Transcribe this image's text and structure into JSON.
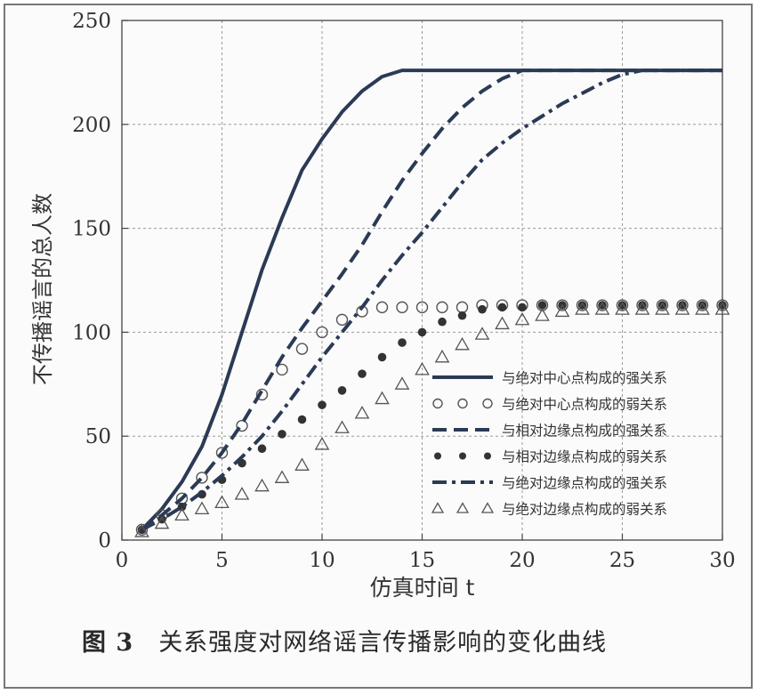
{
  "chart_data": {
    "type": "line",
    "title": "",
    "xlabel": "仿真时间 t",
    "ylabel": "不传播谣言的总人数",
    "xlim": [
      0,
      30
    ],
    "ylim": [
      0,
      250
    ],
    "xticks": [
      0,
      5,
      10,
      15,
      20,
      25,
      30
    ],
    "yticks": [
      0,
      50,
      100,
      150,
      200,
      250
    ],
    "grid": true,
    "legend_position": "bottom-right",
    "series": [
      {
        "name": "与绝对中心点构成的强关系",
        "style": "solid",
        "marker": "none",
        "color": "#2b3a55",
        "x": [
          1,
          2,
          3,
          4,
          5,
          6,
          7,
          8,
          9,
          10,
          11,
          12,
          13,
          14,
          15,
          16,
          18,
          20,
          22,
          25,
          28,
          30
        ],
        "y": [
          5,
          15,
          28,
          45,
          70,
          100,
          130,
          155,
          178,
          193,
          206,
          216,
          223,
          226,
          226,
          226,
          226,
          226,
          226,
          226,
          226,
          226
        ]
      },
      {
        "name": "与绝对中心点构成的弱关系",
        "style": "none",
        "marker": "circle-open",
        "color": "#555555",
        "x": [
          1,
          2,
          3,
          4,
          5,
          6,
          7,
          8,
          9,
          10,
          11,
          12,
          13,
          14,
          15,
          16,
          17,
          18,
          19,
          20,
          21,
          22,
          23,
          24,
          25,
          26,
          27,
          28,
          29,
          30
        ],
        "y": [
          5,
          12,
          20,
          30,
          42,
          55,
          70,
          82,
          92,
          100,
          106,
          110,
          112,
          112,
          112,
          112,
          112,
          113,
          113,
          113,
          113,
          113,
          113,
          113,
          113,
          113,
          113,
          113,
          113,
          113
        ]
      },
      {
        "name": "与相对边缘点构成的强关系",
        "style": "dashed",
        "marker": "none",
        "color": "#2b3a55",
        "x": [
          1,
          2,
          3,
          4,
          5,
          6,
          7,
          8,
          9,
          10,
          11,
          12,
          13,
          14,
          15,
          16,
          17,
          18,
          19,
          20,
          21,
          22,
          24,
          26,
          28,
          30
        ],
        "y": [
          5,
          12,
          20,
          30,
          42,
          56,
          72,
          88,
          102,
          115,
          128,
          142,
          158,
          173,
          186,
          198,
          208,
          216,
          222,
          226,
          226,
          226,
          226,
          226,
          226,
          226
        ]
      },
      {
        "name": "与相对边缘点构成的弱关系",
        "style": "none",
        "marker": "circle-filled",
        "color": "#333333",
        "x": [
          1,
          2,
          3,
          4,
          5,
          6,
          7,
          8,
          9,
          10,
          11,
          12,
          13,
          14,
          15,
          16,
          17,
          18,
          19,
          20,
          21,
          22,
          23,
          24,
          25,
          26,
          27,
          28,
          29,
          30
        ],
        "y": [
          5,
          10,
          16,
          22,
          29,
          37,
          44,
          51,
          58,
          65,
          72,
          80,
          88,
          95,
          100,
          105,
          108,
          111,
          112,
          112,
          113,
          113,
          113,
          113,
          113,
          113,
          113,
          113,
          113,
          113
        ]
      },
      {
        "name": "与绝对边缘点构成的强关系",
        "style": "dashdot",
        "marker": "none",
        "color": "#2b3a55",
        "x": [
          1,
          2,
          3,
          4,
          5,
          6,
          7,
          8,
          9,
          10,
          11,
          12,
          13,
          14,
          15,
          16,
          17,
          18,
          19,
          20,
          21,
          22,
          23,
          24,
          25,
          26,
          28,
          30
        ],
        "y": [
          5,
          10,
          16,
          23,
          31,
          40,
          50,
          62,
          75,
          88,
          100,
          112,
          125,
          137,
          148,
          160,
          172,
          183,
          191,
          198,
          204,
          210,
          215,
          220,
          224,
          226,
          226,
          226
        ]
      },
      {
        "name": "与绝对边缘点构成的弱关系",
        "style": "none",
        "marker": "triangle-open",
        "color": "#555555",
        "x": [
          1,
          2,
          3,
          4,
          5,
          6,
          7,
          8,
          9,
          10,
          11,
          12,
          13,
          14,
          15,
          16,
          17,
          18,
          19,
          20,
          21,
          22,
          23,
          24,
          25,
          26,
          27,
          28,
          29,
          30
        ],
        "y": [
          4,
          8,
          12,
          15,
          18,
          22,
          26,
          30,
          36,
          46,
          54,
          61,
          68,
          75,
          82,
          88,
          94,
          99,
          104,
          106,
          108,
          110,
          111,
          111,
          111,
          111,
          111,
          111,
          111,
          111
        ]
      }
    ]
  },
  "caption": {
    "figure_number": "图 3",
    "text": "关系强度对网络谣言传播影响的变化曲线"
  }
}
